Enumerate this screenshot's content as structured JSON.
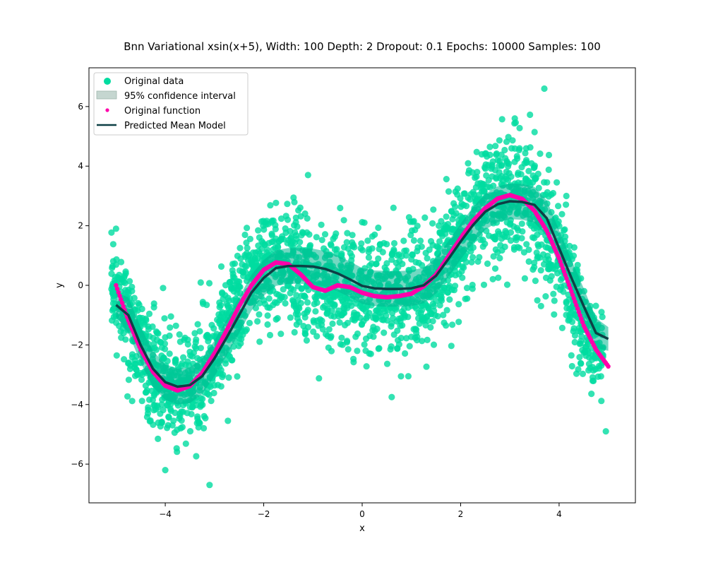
{
  "chart_data": {
    "type": "scatter",
    "title": "Bnn Variational xsin(x+5), Width: 100 Depth: 2 Dropout: 0.1 Epochs: 10000 Samples: 100",
    "xlabel": "x",
    "ylabel": "y",
    "xlim": [
      -5.55,
      5.55
    ],
    "ylim": [
      -7.3,
      7.3
    ],
    "xticks": [
      -4,
      -2,
      0,
      2,
      4
    ],
    "yticks": [
      -6,
      -4,
      -2,
      0,
      2,
      4,
      6
    ],
    "xtick_labels": [
      "−4",
      "−2",
      "0",
      "2",
      "4"
    ],
    "ytick_labels": [
      "−6",
      "−4",
      "−2",
      "0",
      "2",
      "4",
      "6"
    ],
    "grid": false,
    "legend_position": "top-left",
    "legend": [
      {
        "label": "Original data",
        "kind": "scatter"
      },
      {
        "label": "95% confidence interval",
        "kind": "band"
      },
      {
        "label": "Original function",
        "kind": "dot"
      },
      {
        "label": "Predicted Mean Model",
        "kind": "line"
      }
    ],
    "colors": {
      "data": "#00dca0",
      "band_legend": "#c5d6d0",
      "band": "#00b890",
      "function": "#ff00aa",
      "mean": "#0d3f45"
    },
    "x": [
      -5.0,
      -4.75,
      -4.5,
      -4.25,
      -4.0,
      -3.75,
      -3.5,
      -3.25,
      -3.0,
      -2.75,
      -2.5,
      -2.25,
      -2.0,
      -1.75,
      -1.5,
      -1.25,
      -1.0,
      -0.75,
      -0.5,
      -0.25,
      0.0,
      0.25,
      0.5,
      0.75,
      1.0,
      1.25,
      1.5,
      1.75,
      2.0,
      2.25,
      2.5,
      2.75,
      3.0,
      3.25,
      3.5,
      3.75,
      4.0,
      4.25,
      4.5,
      4.75,
      5.0
    ],
    "series": [
      {
        "name": "Original function",
        "values": [
          0.0,
          -1.18,
          -2.16,
          -2.9,
          -3.37,
          -3.53,
          -3.38,
          -2.94,
          -2.28,
          -1.5,
          -0.7,
          0.0,
          0.52,
          0.77,
          0.71,
          0.37,
          -0.06,
          -0.18,
          0.0,
          -0.06,
          -0.25,
          -0.36,
          -0.4,
          -0.36,
          -0.28,
          -0.03,
          0.36,
          0.97,
          1.58,
          2.16,
          2.59,
          2.91,
          3.03,
          2.9,
          2.5,
          1.83,
          0.91,
          -0.21,
          -1.35,
          -2.16,
          -2.72
        ]
      },
      {
        "name": "Predicted Mean Model",
        "values": [
          -0.66,
          -1.0,
          -2.0,
          -2.8,
          -3.25,
          -3.4,
          -3.35,
          -3.05,
          -2.45,
          -1.75,
          -1.0,
          -0.25,
          0.25,
          0.58,
          0.65,
          0.65,
          0.63,
          0.55,
          0.4,
          0.2,
          -0.02,
          -0.1,
          -0.12,
          -0.12,
          -0.1,
          0.0,
          0.32,
          0.88,
          1.47,
          2.02,
          2.47,
          2.72,
          2.82,
          2.8,
          2.7,
          2.25,
          1.25,
          0.25,
          -0.7,
          -1.6,
          -1.8
        ]
      }
    ],
    "confidence_interval": {
      "lower": [
        -1.06,
        -1.6,
        -2.6,
        -3.4,
        -3.85,
        -4.0,
        -3.95,
        -3.65,
        -3.05,
        -2.35,
        -1.6,
        -0.85,
        -0.35,
        -0.02,
        0.05,
        0.05,
        0.03,
        -0.05,
        -0.2,
        -0.4,
        -0.62,
        -0.7,
        -0.72,
        -0.72,
        -0.7,
        -0.6,
        -0.28,
        0.28,
        0.87,
        1.42,
        1.87,
        2.12,
        2.22,
        2.2,
        2.1,
        1.65,
        0.65,
        -0.35,
        -1.3,
        -2.1,
        -2.2
      ],
      "upper": [
        -0.26,
        -0.4,
        -1.4,
        -2.2,
        -2.65,
        -2.8,
        -2.75,
        -2.45,
        -1.85,
        -1.15,
        -0.4,
        0.35,
        0.85,
        1.18,
        1.25,
        1.25,
        1.23,
        1.15,
        1.0,
        0.8,
        0.58,
        0.5,
        0.48,
        0.48,
        0.5,
        0.6,
        0.92,
        1.48,
        2.07,
        2.62,
        3.07,
        3.32,
        3.42,
        3.4,
        3.3,
        2.85,
        1.85,
        0.85,
        -0.1,
        -1.1,
        -1.4
      ]
    },
    "scatter_spread": {
      "x": [
        -5.0,
        -4.5,
        -4.0,
        -3.5,
        -3.0,
        -2.5,
        -2.0,
        -1.5,
        -1.0,
        -0.5,
        0.0,
        0.5,
        1.0,
        1.5,
        2.0,
        2.5,
        3.0,
        3.5,
        4.0,
        4.5,
        5.0
      ],
      "std": [
        0.65,
        0.95,
        1.05,
        1.0,
        0.95,
        0.9,
        0.95,
        1.0,
        1.0,
        1.0,
        0.95,
        0.95,
        0.95,
        0.95,
        0.95,
        1.05,
        1.15,
        1.1,
        1.0,
        0.85,
        0.65
      ]
    },
    "scatter_extremes": [
      {
        "x": 3.7,
        "y": 6.6
      },
      {
        "x": -3.1,
        "y": -6.7
      },
      {
        "x": -1.1,
        "y": 3.7
      },
      {
        "x": 3.1,
        "y": 5.6
      },
      {
        "x": 0.6,
        "y": -3.75
      },
      {
        "x": 4.95,
        "y": -4.9
      },
      {
        "x": -4.0,
        "y": -6.2
      },
      {
        "x": -5.0,
        "y": 1.9
      }
    ]
  }
}
